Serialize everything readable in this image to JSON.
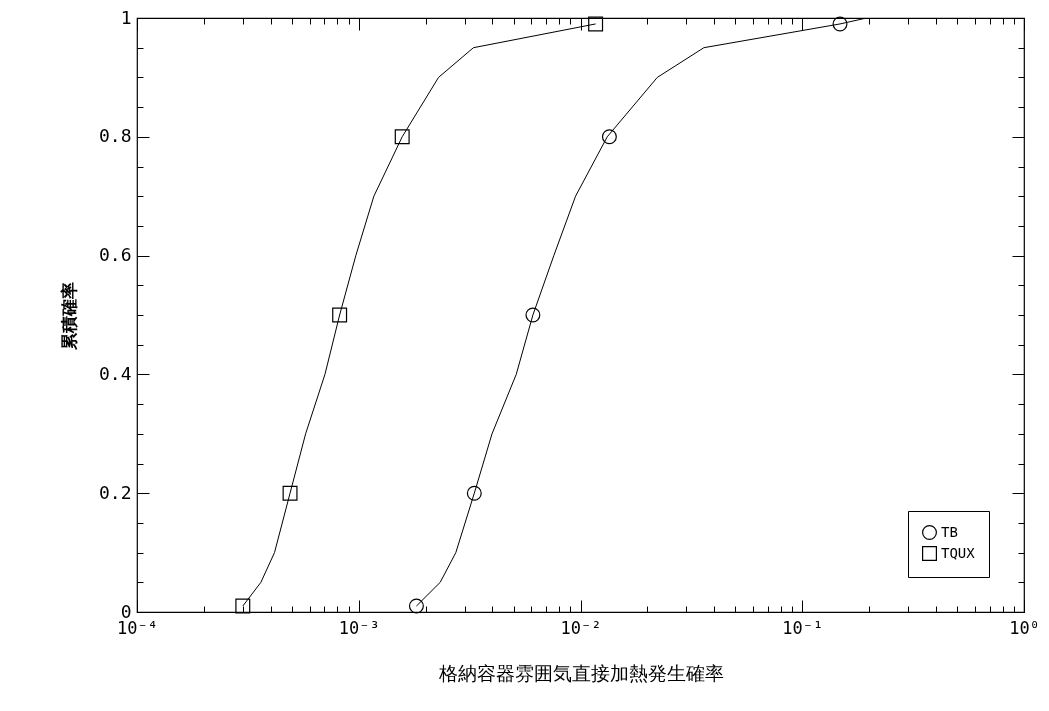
{
  "chart_data": {
    "type": "line",
    "xlabel": "格納容器雰囲気直接加熱発生確率",
    "ylabel": "累積確率",
    "log": "x",
    "xlim": [
      0.0001,
      1
    ],
    "ylim": [
      0,
      1
    ],
    "xticks": [
      {
        "value": 0.0001,
        "label": "10⁻⁴"
      },
      {
        "value": 0.0002,
        "label": null
      },
      {
        "value": 0.0003,
        "label": null
      },
      {
        "value": 0.0004,
        "label": null
      },
      {
        "value": 0.0005,
        "label": null
      },
      {
        "value": 0.0006,
        "label": null
      },
      {
        "value": 0.0007,
        "label": null
      },
      {
        "value": 0.0008,
        "label": null
      },
      {
        "value": 0.0009,
        "label": null
      },
      {
        "value": 0.001,
        "label": "10⁻³"
      },
      {
        "value": 0.002,
        "label": null
      },
      {
        "value": 0.003,
        "label": null
      },
      {
        "value": 0.004,
        "label": null
      },
      {
        "value": 0.005,
        "label": null
      },
      {
        "value": 0.006,
        "label": null
      },
      {
        "value": 0.007,
        "label": null
      },
      {
        "value": 0.008,
        "label": null
      },
      {
        "value": 0.009,
        "label": null
      },
      {
        "value": 0.01,
        "label": "10⁻²"
      },
      {
        "value": 0.02,
        "label": null
      },
      {
        "value": 0.03,
        "label": null
      },
      {
        "value": 0.04,
        "label": null
      },
      {
        "value": 0.05,
        "label": null
      },
      {
        "value": 0.06,
        "label": null
      },
      {
        "value": 0.07,
        "label": null
      },
      {
        "value": 0.08,
        "label": null
      },
      {
        "value": 0.09,
        "label": null
      },
      {
        "value": 0.1,
        "label": "10⁻¹"
      },
      {
        "value": 0.2,
        "label": null
      },
      {
        "value": 0.3,
        "label": null
      },
      {
        "value": 0.4,
        "label": null
      },
      {
        "value": 0.5,
        "label": null
      },
      {
        "value": 0.6,
        "label": null
      },
      {
        "value": 0.7,
        "label": null
      },
      {
        "value": 0.8,
        "label": null
      },
      {
        "value": 0.9,
        "label": null
      },
      {
        "value": 1,
        "label": "10⁰"
      }
    ],
    "yticks": [
      0,
      {
        "value": 0.05,
        "label": null
      },
      {
        "value": 0.1,
        "label": null
      },
      {
        "value": 0.15,
        "label": null
      },
      0.2,
      {
        "value": 0.25,
        "label": null
      },
      {
        "value": 0.3,
        "label": null
      },
      {
        "value": 0.35,
        "label": null
      },
      0.4,
      {
        "value": 0.45,
        "label": null
      },
      {
        "value": 0.5,
        "label": null
      },
      {
        "value": 0.55,
        "label": null
      },
      0.6,
      {
        "value": 0.65,
        "label": null
      },
      {
        "value": 0.7,
        "label": null
      },
      {
        "value": 0.75,
        "label": null
      },
      0.8,
      {
        "value": 0.85,
        "label": null
      },
      {
        "value": 0.9,
        "label": null
      },
      {
        "value": 0.95,
        "label": null
      },
      1
    ],
    "grid": false,
    "legend": "bottom right",
    "line_style": "solid",
    "series": [
      {
        "color": "#000000",
        "x": [
          0.00182,
          0.00233,
          0.00274,
          0.00332,
          0.00399,
          0.00513,
          0.0061,
          0.00758,
          0.0095,
          0.0132,
          0.0222,
          0.036,
          0.148,
          0.195
        ],
        "values": [
          0.01,
          0.05,
          0.1,
          0.2,
          0.3,
          0.4,
          0.5,
          0.6,
          0.7,
          0.8,
          0.9,
          0.95,
          0.99,
          1
        ]
      },
      {
        "color": "#000000",
        "x": [
          0.0003,
          0.000362,
          0.000417,
          0.00049,
          0.000576,
          0.000704,
          0.00082,
          0.00097,
          0.00117,
          0.00157,
          0.00229,
          0.00329,
          0.0117
        ],
        "values": [
          0.01,
          0.05,
          0.1,
          0.2,
          0.3,
          0.4,
          0.5,
          0.6,
          0.7,
          0.8,
          0.9,
          0.95,
          0.99
        ]
      },
      {
        "type": "scatter",
        "name": "TB",
        "color": "#000000",
        "marker": "circle",
        "x": [
          0.00182,
          0.00332,
          0.0061,
          0.0135,
          0.148
        ],
        "values": [
          0.01,
          0.2,
          0.5,
          0.8,
          0.99
        ]
      },
      {
        "type": "scatter",
        "name": "TQUX",
        "color": "#000000",
        "marker": "square",
        "x": [
          0.0003,
          0.00049,
          0.00082,
          0.00157,
          0.0117
        ],
        "values": [
          0.01,
          0.2,
          0.5,
          0.8,
          0.99
        ]
      }
    ]
  }
}
